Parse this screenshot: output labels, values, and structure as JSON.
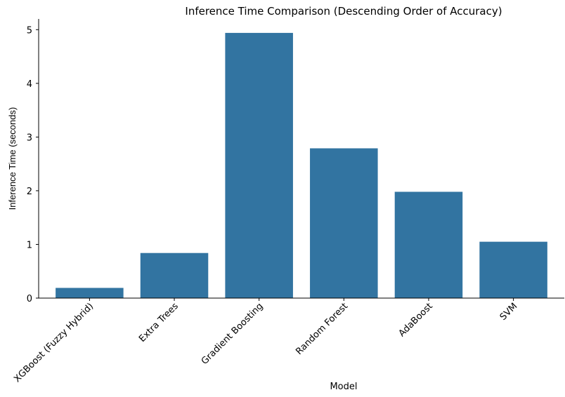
{
  "chart_data": {
    "type": "bar",
    "title": "Inference Time Comparison (Descending Order of Accuracy)",
    "xlabel": "Model",
    "ylabel": "Inference Time (seconds)",
    "categories": [
      "XGBoost (Fuzzy Hybrid)",
      "Extra Trees",
      "Gradient Boosting",
      "Random Forest",
      "AdaBoost",
      "SVM"
    ],
    "values": [
      0.19,
      0.84,
      4.94,
      2.79,
      1.98,
      1.05
    ],
    "ylim": [
      0,
      5.2
    ],
    "yticks": [
      0,
      1,
      2,
      3,
      4,
      5
    ],
    "grid": false,
    "bar_color": "#3274a1"
  }
}
